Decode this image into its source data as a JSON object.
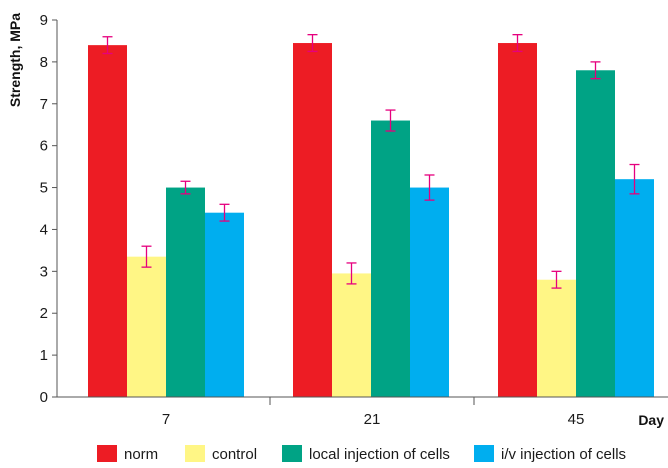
{
  "chart_data": {
    "type": "bar",
    "ylabel": "Strength, MPa",
    "xlabel": "Day",
    "ylim": [
      0,
      9
    ],
    "yticks": [
      "0",
      "1",
      "2",
      "3",
      "4",
      "5",
      "6",
      "7",
      "8",
      "9"
    ],
    "categories": [
      "7",
      "21",
      "45"
    ],
    "series": [
      {
        "name": "norm",
        "color": "#ed1c24",
        "values": [
          8.4,
          8.45,
          8.45
        ],
        "errors": [
          0.2,
          0.2,
          0.2
        ]
      },
      {
        "name": "control",
        "color": "#fff685",
        "values": [
          3.35,
          2.95,
          2.8
        ],
        "errors": [
          0.25,
          0.25,
          0.2
        ]
      },
      {
        "name": "local injection of cells",
        "color": "#00a385",
        "values": [
          5.0,
          6.6,
          7.8
        ],
        "errors": [
          0.15,
          0.25,
          0.2
        ]
      },
      {
        "name": "i/v injection of cells",
        "color": "#00aeef",
        "values": [
          4.4,
          5.0,
          5.2
        ],
        "errors": [
          0.2,
          0.3,
          0.35
        ]
      }
    ],
    "error_bar_color": "#e6007e",
    "grid": false,
    "legend_position": "bottom"
  }
}
